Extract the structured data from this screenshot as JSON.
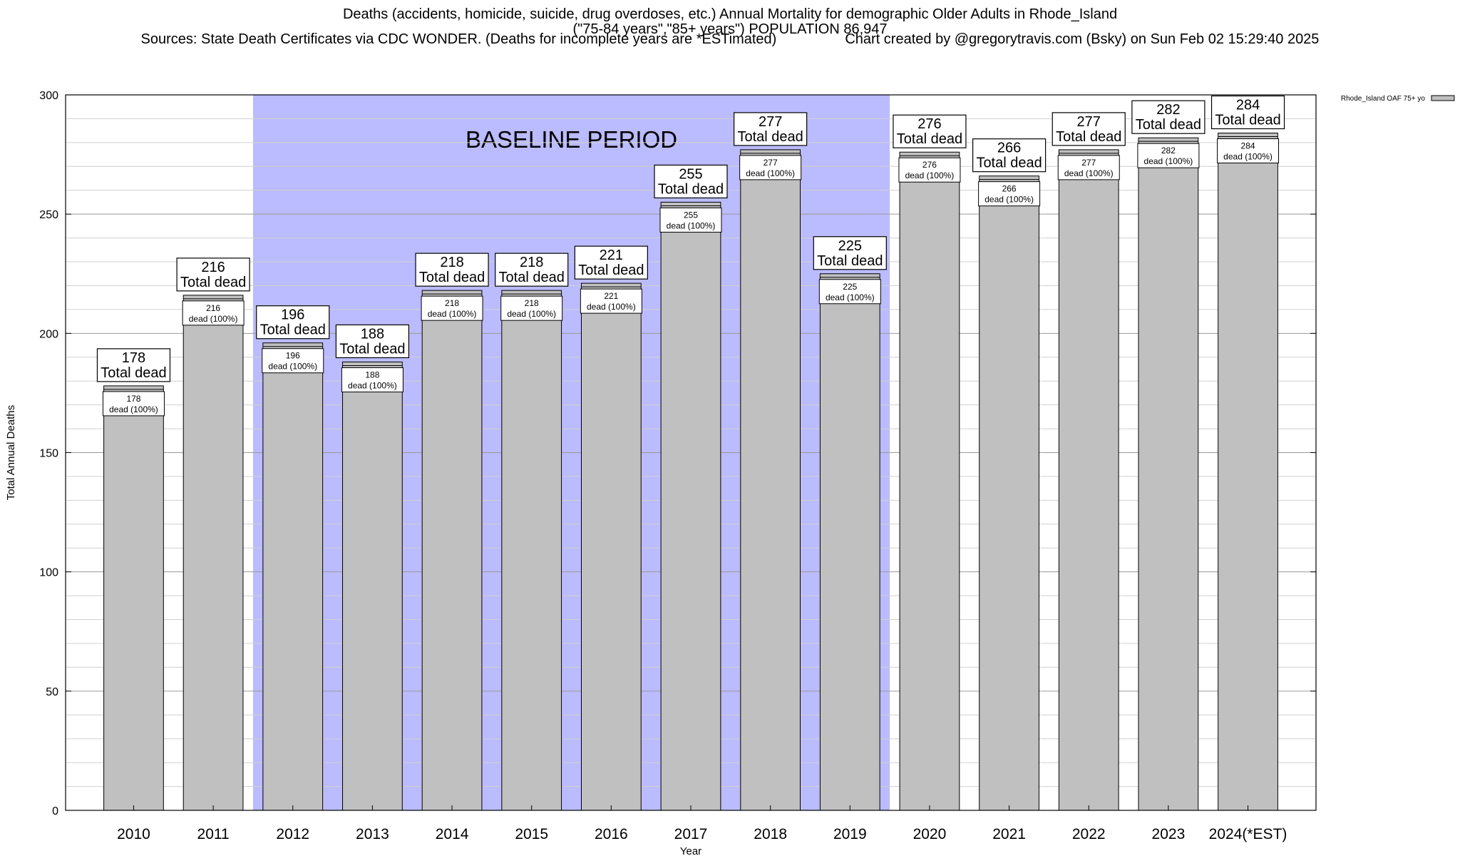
{
  "chart_data": {
    "type": "bar",
    "title": "Deaths (accidents, homicide, suicide, drug overdoses, etc.) Annual Mortality for demographic Older Adults in Rhode_Island",
    "subtitle": "(\"75-84 years\",\"85+ years\") POPULATION 86,947",
    "sources": "Sources: State Death Certificates via CDC WONDER. (Deaths for incomplete years are *ESTimated)",
    "credit": "Chart created by @gregorytravis.com (Bsky) on Sun Feb 02 15:29:40 2025",
    "xlabel": "Year",
    "ylabel": "Total Annual Deaths",
    "ylim": [
      0,
      300
    ],
    "yticks": [
      0,
      50,
      100,
      150,
      200,
      250,
      300
    ],
    "grid": true,
    "legend": {
      "position": "top-right",
      "label": "Rhode_Island OAF 75+ yo",
      "color": "#c0c0c0"
    },
    "categories": [
      "2010",
      "2011",
      "2012",
      "2013",
      "2014",
      "2015",
      "2016",
      "2017",
      "2018",
      "2019",
      "2020",
      "2021",
      "2022",
      "2023",
      "2024(*EST)"
    ],
    "series": [
      {
        "name": "Rhode_Island OAF 75+ yo",
        "values": [
          178,
          216,
          196,
          188,
          218,
          218,
          221,
          255,
          277,
          225,
          276,
          266,
          277,
          282,
          284
        ]
      }
    ],
    "total_label": "Total dead",
    "inner_label_suffix": "dead (100%)",
    "baseline": {
      "label": "BASELINE PERIOD",
      "from_category": "2012",
      "to_category": "2019",
      "color": "#bbbbff"
    },
    "bar_color": "#c0c0c0"
  }
}
